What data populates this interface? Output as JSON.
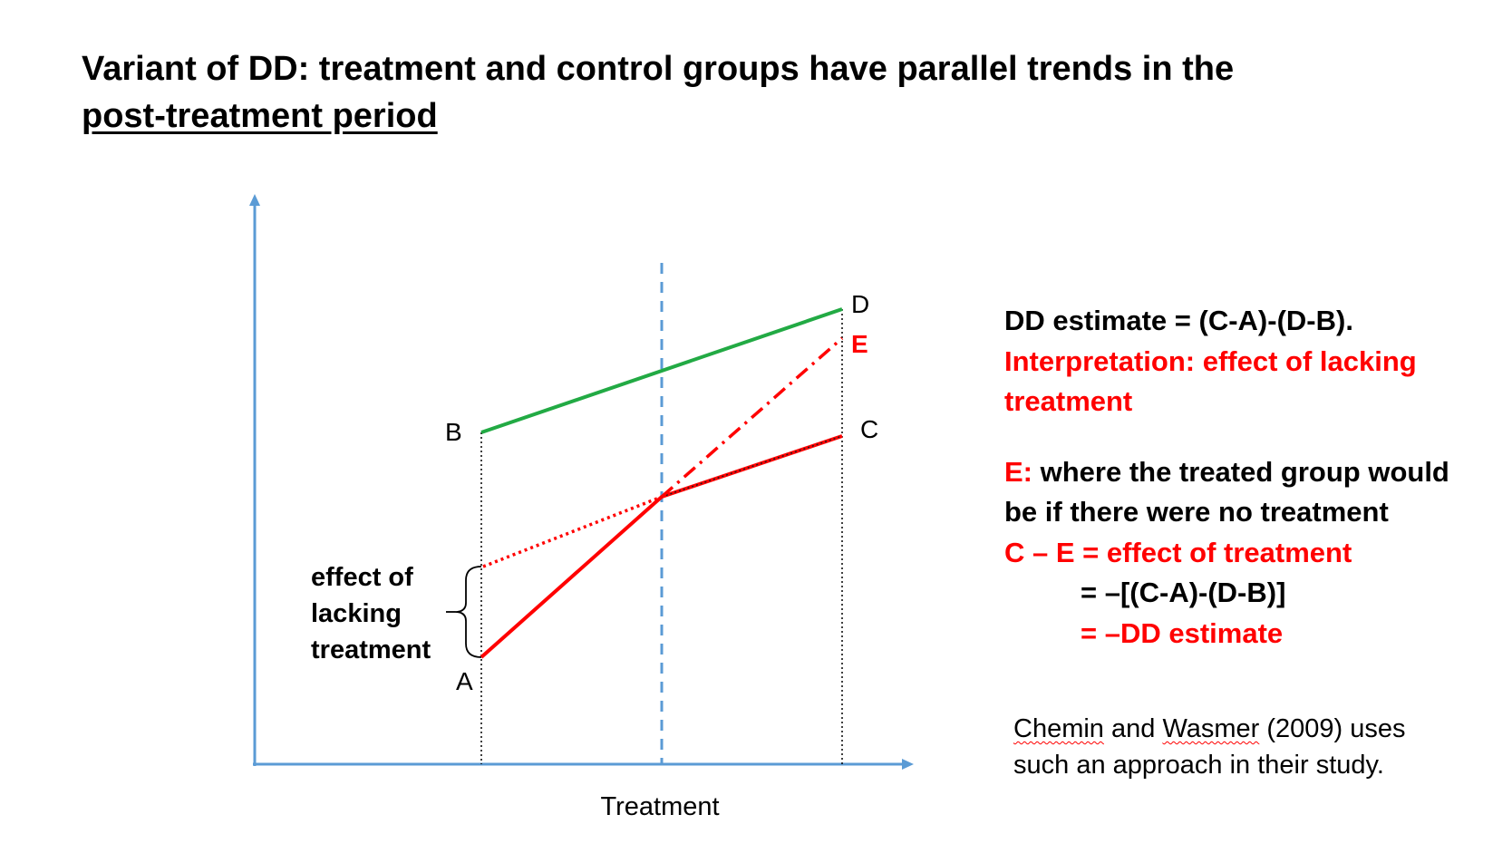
{
  "title": {
    "line1": "Variant of DD: treatment and control groups have parallel trends in the",
    "line2": "post-treatment period"
  },
  "diagram": {
    "point_labels": {
      "A": "A",
      "B": "B",
      "C": "C",
      "D": "D",
      "E": "E"
    },
    "x_axis_label": "Treatment",
    "effect_label": [
      "effect of",
      "lacking",
      "treatment"
    ],
    "colors": {
      "axis": "#5b9bd5",
      "control_line": "#22aa44",
      "treated_line": "#ff0000",
      "treatment_marker": "#5b9bd5",
      "guide_line": "#000000"
    }
  },
  "right_panel": {
    "dd_estimate": "DD estimate = (C-A)-(D-B).",
    "interpretation_1": "Interpretation: effect of lacking",
    "interpretation_2": "treatment",
    "e_label": "E:",
    "e_text_1": " where the treated group would",
    "e_text_2": "be if there were no treatment",
    "c_minus_e": "C – E = effect of treatment",
    "eq_1": "=  –[(C-A)-(D-B)]",
    "eq_2": "= –DD estimate"
  },
  "citation": {
    "author_1": "Chemin",
    "and": " and ",
    "author_2": "Wasmer",
    "line1_rest": " (2009) uses",
    "line2": "such an approach in their study."
  }
}
